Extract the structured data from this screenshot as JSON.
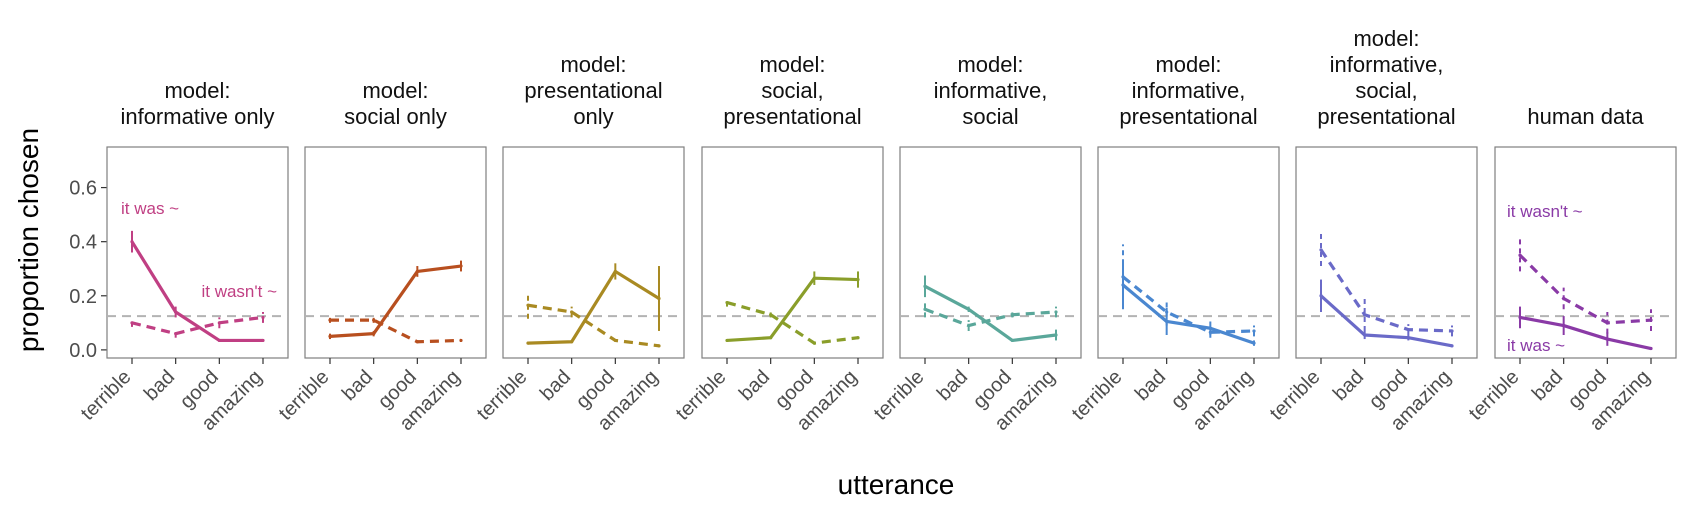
{
  "figure": {
    "ylabel": "proportion chosen",
    "xlabel": "utterance",
    "y_tick_labels": [
      "0.0",
      "0.2",
      "0.4",
      "0.6"
    ],
    "reference_line": 0.125
  },
  "chart_data": {
    "type": "line",
    "categories": [
      "terrible",
      "bad",
      "good",
      "amazing"
    ],
    "ylim": [
      -0.03,
      0.75
    ],
    "y_ticks": [
      0.0,
      0.2,
      0.4,
      0.6
    ],
    "xlabel": "utterance",
    "ylabel": "proportion chosen",
    "reference_line": {
      "y": 0.125,
      "style": "dashed",
      "color": "#b3b3b3"
    },
    "grid": false,
    "panels": [
      {
        "title_lines": [
          "model:",
          "informative only"
        ],
        "color": "#c03f83",
        "series": [
          {
            "name": "it was ~",
            "style": "solid",
            "values": [
              0.4,
              0.14,
              0.035,
              0.035
            ],
            "err": [
              0.04,
              0.02,
              0.005,
              0.005
            ]
          },
          {
            "name": "it wasn't ~",
            "style": "dashed",
            "values": [
              0.1,
              0.06,
              0.1,
              0.12
            ],
            "err": [
              0.015,
              0.015,
              0.02,
              0.02
            ]
          }
        ],
        "labels": [
          {
            "text": "it was ~"
          },
          {
            "text": "it wasn't ~"
          }
        ]
      },
      {
        "title_lines": [
          "model:",
          "social only"
        ],
        "color": "#b84f1f",
        "series": [
          {
            "style": "solid",
            "values": [
              0.05,
              0.06,
              0.29,
              0.31
            ],
            "err": [
              0.01,
              0.01,
              0.02,
              0.02
            ]
          },
          {
            "style": "dashed",
            "values": [
              0.11,
              0.11,
              0.03,
              0.035
            ],
            "err": [
              0.01,
              0.01,
              0.005,
              0.005
            ]
          }
        ],
        "labels": []
      },
      {
        "title_lines": [
          "model:",
          "presentational",
          "only"
        ],
        "color": "#a98a22",
        "series": [
          {
            "style": "solid",
            "values": [
              0.025,
              0.03,
              0.29,
              0.19
            ],
            "err": [
              0.005,
              0.005,
              0.03,
              0.12
            ]
          },
          {
            "style": "dashed",
            "values": [
              0.165,
              0.14,
              0.035,
              0.015
            ],
            "err": [
              0.05,
              0.02,
              0.005,
              0.005
            ]
          }
        ],
        "labels": []
      },
      {
        "title_lines": [
          "model:",
          "social,",
          "presentational"
        ],
        "color": "#8a9e2a",
        "series": [
          {
            "style": "solid",
            "values": [
              0.035,
              0.045,
              0.265,
              0.26
            ],
            "err": [
              0.005,
              0.005,
              0.025,
              0.03
            ]
          },
          {
            "style": "dashed",
            "values": [
              0.175,
              0.13,
              0.025,
              0.045
            ],
            "err": [
              0.015,
              0.01,
              0.005,
              0.005
            ]
          }
        ],
        "labels": []
      },
      {
        "title_lines": [
          "model:",
          "informative,",
          "social"
        ],
        "color": "#5aa79a",
        "series": [
          {
            "style": "solid",
            "values": [
              0.235,
              0.15,
              0.035,
              0.055
            ],
            "err": [
              0.04,
              0.01,
              0.005,
              0.02
            ]
          },
          {
            "style": "dashed",
            "values": [
              0.15,
              0.09,
              0.13,
              0.14
            ],
            "err": [
              0.03,
              0.02,
              0.01,
              0.02
            ]
          }
        ],
        "labels": []
      },
      {
        "title_lines": [
          "model:",
          "informative,",
          "presentational"
        ],
        "color": "#4a87d0",
        "series": [
          {
            "style": "solid",
            "values": [
              0.24,
              0.105,
              0.08,
              0.025
            ],
            "err": [
              0.08,
              0.05,
              0.025,
              0.01
            ]
          },
          {
            "style": "dashed",
            "values": [
              0.27,
              0.14,
              0.065,
              0.07
            ],
            "err": [
              0.12,
              0.05,
              0.02,
              0.02
            ]
          }
        ],
        "labels": []
      },
      {
        "title_lines": [
          "model:",
          "informative,",
          "social,",
          "presentational"
        ],
        "color": "#6a6ac8",
        "series": [
          {
            "style": "solid",
            "values": [
              0.2,
              0.055,
              0.045,
              0.015
            ],
            "err": [
              0.06,
              0.015,
              0.01,
              0.005
            ]
          },
          {
            "style": "dashed",
            "values": [
              0.37,
              0.13,
              0.075,
              0.07
            ],
            "err": [
              0.06,
              0.06,
              0.02,
              0.02
            ]
          }
        ],
        "labels": []
      },
      {
        "title_lines": [
          "human data"
        ],
        "color": "#8a3aa6",
        "series": [
          {
            "name": "it was ~",
            "style": "solid",
            "values": [
              0.12,
              0.09,
              0.04,
              0.005
            ],
            "err": [
              0.04,
              0.035,
              0.025,
              0.005
            ]
          },
          {
            "name": "it wasn't ~",
            "style": "dashed",
            "values": [
              0.35,
              0.19,
              0.1,
              0.11
            ],
            "err": [
              0.06,
              0.04,
              0.04,
              0.04
            ]
          }
        ],
        "labels": [
          {
            "text": "it wasn't ~"
          },
          {
            "text": "it was ~"
          }
        ]
      }
    ]
  }
}
